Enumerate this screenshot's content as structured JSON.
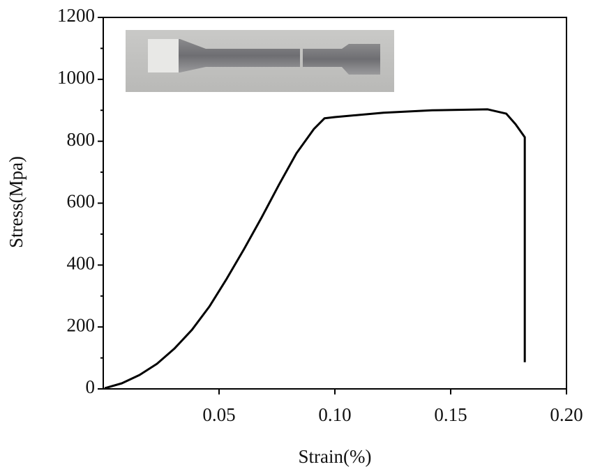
{
  "chart_data": {
    "type": "line",
    "x_label": "Strain(%)",
    "y_label": "Stress(Mpa)",
    "x": [
      0.0006,
      0.008,
      0.0157,
      0.0232,
      0.0307,
      0.0383,
      0.0458,
      0.0533,
      0.0608,
      0.0684,
      0.0759,
      0.0834,
      0.091,
      0.0955,
      0.1,
      0.121,
      0.142,
      0.166,
      0.174,
      0.178,
      0.182,
      0.182
    ],
    "values": [
      2,
      18,
      45,
      81,
      130,
      191,
      266,
      356,
      452,
      554,
      660,
      761,
      840,
      874,
      878,
      892,
      900,
      903,
      889,
      855,
      813,
      86
    ],
    "color": "#000000",
    "xlim": [
      0,
      0.2
    ],
    "xticks": [
      0.05,
      {
        "value": 0.1,
        "label": "0.10"
      },
      0.15,
      {
        "value": 0.2,
        "label": "0.20"
      }
    ],
    "ylim": [
      0,
      1200
    ],
    "yticks": [
      0,
      200,
      400,
      600,
      800,
      1000,
      1200
    ],
    "yminor_ticks": [
      100,
      300,
      500,
      700,
      900,
      1100
    ]
  }
}
